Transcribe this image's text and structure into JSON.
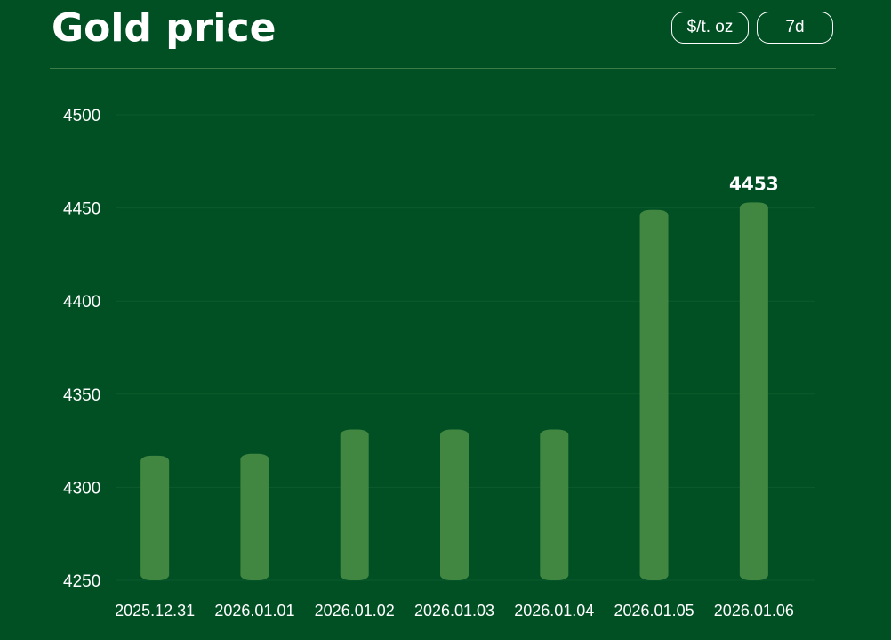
{
  "header": {
    "title": "Gold price",
    "unit_label": "$/t. oz",
    "range_label": "7d"
  },
  "colors": {
    "background": "#005024",
    "bar": "#428741",
    "text": "#ffffff",
    "grid": "#0b5a2c"
  },
  "chart_data": {
    "type": "bar",
    "title": "Gold price",
    "categories": [
      "2025.12.31",
      "2026.01.01",
      "2026.01.02",
      "2026.01.03",
      "2026.01.04",
      "2026.01.05",
      "2026.01.06"
    ],
    "values": [
      4317,
      4318,
      4331,
      4331,
      4331,
      4449,
      4453
    ],
    "data_labels": [
      null,
      null,
      null,
      null,
      null,
      null,
      "4453"
    ],
    "ylim": [
      4250,
      4500
    ],
    "yticks": [
      "4500",
      "4450",
      "4400",
      "4350",
      "4300",
      "4250"
    ],
    "xlabel": "",
    "ylabel": "",
    "grid": true
  }
}
